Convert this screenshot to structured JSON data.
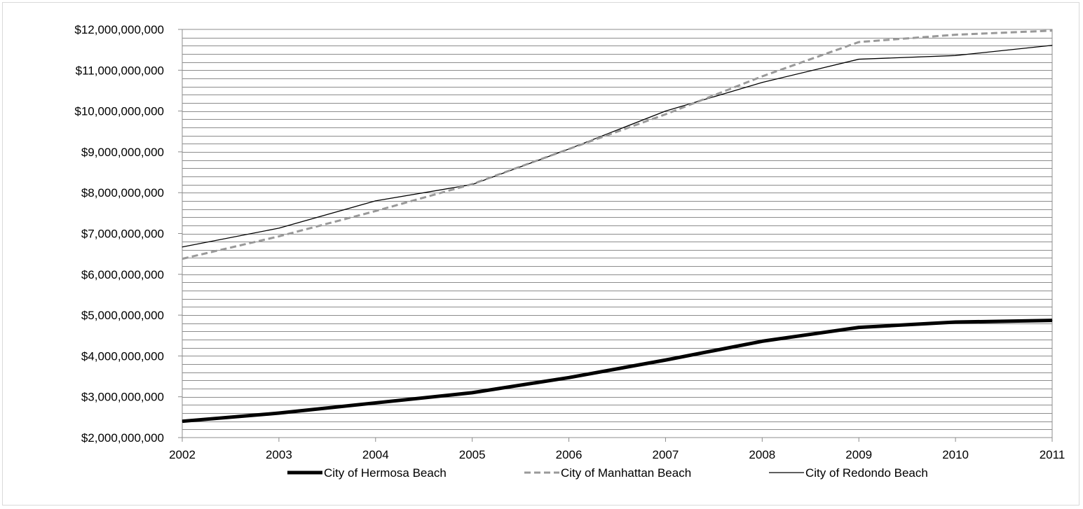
{
  "chart_data": {
    "type": "line",
    "x": [
      2002,
      2003,
      2004,
      2005,
      2006,
      2007,
      2008,
      2009,
      2010,
      2011
    ],
    "xtick_labels": [
      "2002",
      "2003",
      "2004",
      "2005",
      "2006",
      "2007",
      "2008",
      "2009",
      "2010",
      "2011"
    ],
    "ylim": [
      2000000000,
      12000000000
    ],
    "ytick_labels": [
      "$2,000,000,000",
      "$3,000,000,000",
      "$4,000,000,000",
      "$5,000,000,000",
      "$6,000,000,000",
      "$7,000,000,000",
      "$8,000,000,000",
      "$9,000,000,000",
      "$10,000,000,000",
      "$11,000,000,000",
      "$12,000,000,000"
    ],
    "title": "",
    "xlabel": "",
    "ylabel": "",
    "grid": true,
    "minor_grid_step": 200000000,
    "legend_position": "bottom",
    "series": [
      {
        "name": "City of Hermosa Beach",
        "color": "#000000",
        "style": "thick-solid",
        "values": [
          2400000000,
          2600000000,
          2850000000,
          3100000000,
          3470000000,
          3900000000,
          4360000000,
          4700000000,
          4830000000,
          4870000000
        ]
      },
      {
        "name": "City of Manhattan Beach",
        "color": "#999999",
        "style": "dashed",
        "values": [
          6380000000,
          6930000000,
          7550000000,
          8210000000,
          9070000000,
          9920000000,
          10850000000,
          11690000000,
          11870000000,
          11970000000
        ]
      },
      {
        "name": "City of Redondo Beach",
        "color": "#000000",
        "style": "thin-solid",
        "values": [
          6670000000,
          7130000000,
          7800000000,
          8200000000,
          9070000000,
          10000000000,
          10700000000,
          11270000000,
          11360000000,
          11610000000
        ]
      }
    ]
  }
}
